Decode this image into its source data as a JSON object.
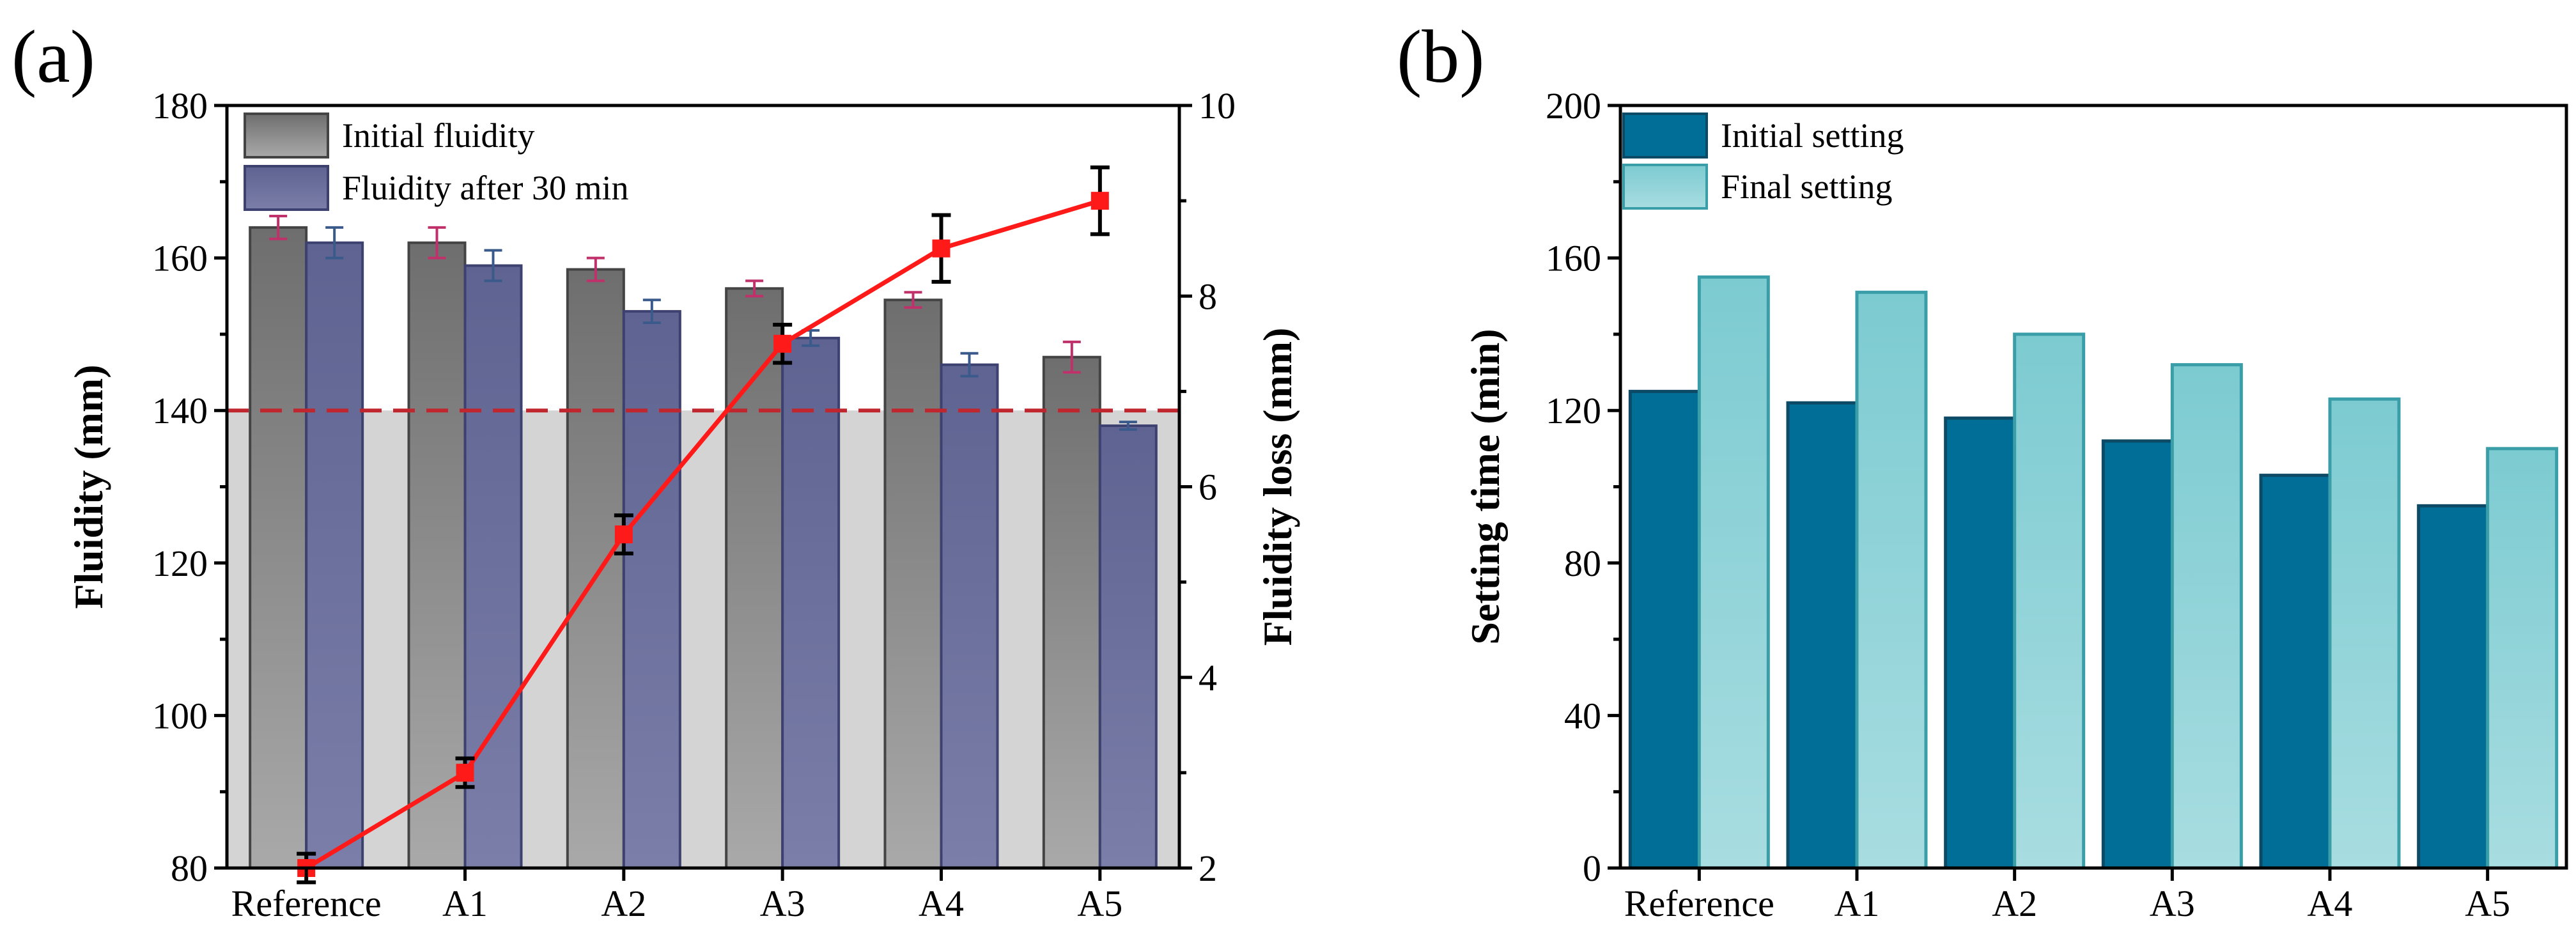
{
  "chart_data": [
    {
      "panel": "(a)",
      "type": "bar",
      "categories": [
        "Reference",
        "A1",
        "A2",
        "A3",
        "A4",
        "A5"
      ],
      "ylabel": "Fluidity (mm)",
      "ylim": [
        80,
        180
      ],
      "yticks": [
        "80",
        "100",
        "120",
        "140",
        "160",
        "180"
      ],
      "y2label": "Fluidity loss (mm)",
      "y2lim": [
        2,
        10
      ],
      "y2ticks": [
        "2",
        "4",
        "6",
        "8",
        "10"
      ],
      "threshold": 140,
      "series": [
        {
          "name": "Initial fluidity",
          "values": [
            164,
            162,
            158.5,
            156,
            154.5,
            147
          ],
          "errors": [
            1.5,
            2,
            1.5,
            1,
            1,
            2
          ],
          "color": "#7f7f7f",
          "error_color": "#c0306a"
        },
        {
          "name": "Fluidity after 30 min",
          "values": [
            162,
            159,
            153,
            149.5,
            146,
            138
          ],
          "errors": [
            2,
            2,
            1.5,
            1,
            1.5,
            0.5
          ],
          "color": "#6a6e99",
          "error_color": "#3a5a8c"
        }
      ],
      "line_series": {
        "name": "Fluidity loss",
        "values": [
          2,
          3,
          5.5,
          7.5,
          8.5,
          9
        ],
        "errors": [
          0.15,
          0.15,
          0.2,
          0.2,
          0.35,
          0.35
        ],
        "color": "#ff1a1a"
      }
    },
    {
      "panel": "(b)",
      "type": "bar",
      "categories": [
        "Reference",
        "A1",
        "A2",
        "A3",
        "A4",
        "A5"
      ],
      "ylabel": "Setting time (min)",
      "ylim": [
        0,
        200
      ],
      "yticks": [
        "0",
        "40",
        "80",
        "120",
        "160",
        "200"
      ],
      "series": [
        {
          "name": "Initial setting",
          "values": [
            125,
            122,
            118,
            112,
            103,
            95
          ],
          "color": "#006e96",
          "edge": "#0d4a66"
        },
        {
          "name": "Final setting",
          "values": [
            155,
            151,
            140,
            132,
            123,
            110
          ],
          "color": "#8fd0d6",
          "edge": "#3a9ea8"
        }
      ]
    }
  ]
}
